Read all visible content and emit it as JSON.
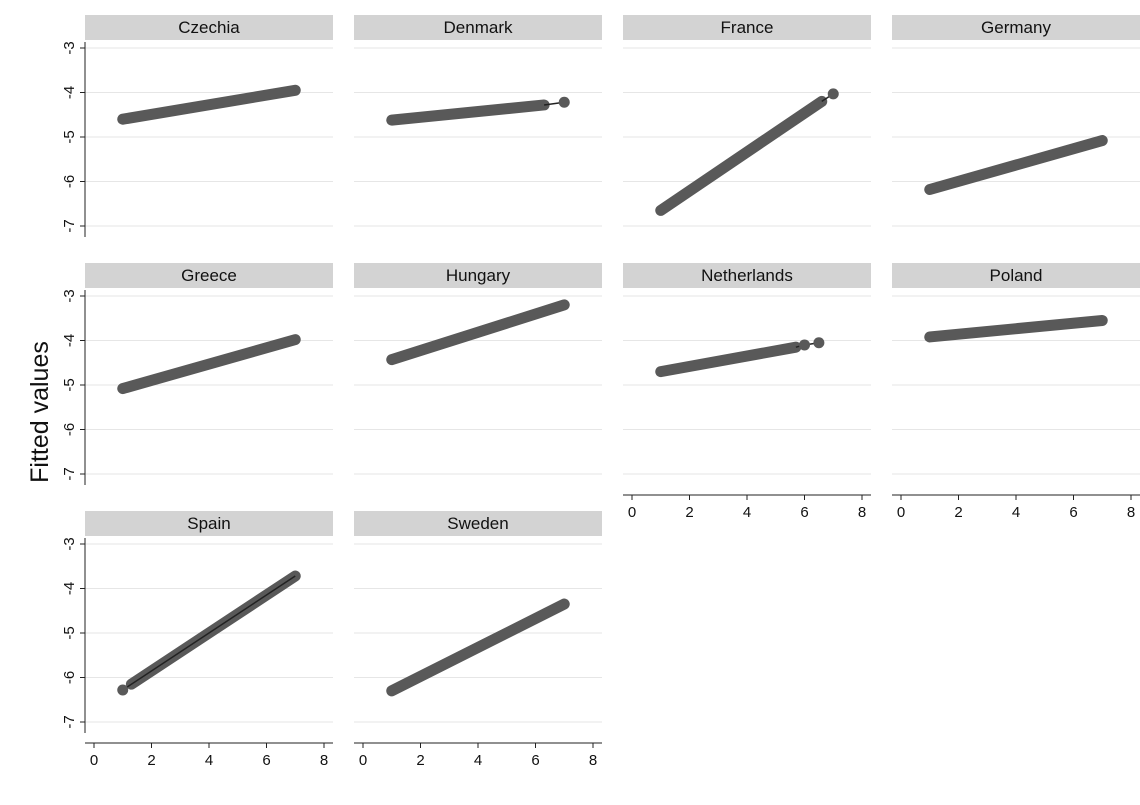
{
  "chart_data": {
    "type": "scatter",
    "ylabel": "Fitted values",
    "xlabel": "",
    "xlim": [
      0,
      8
    ],
    "ylim": [
      -7,
      -3
    ],
    "xticks": [
      0,
      2,
      4,
      6,
      8
    ],
    "yticks": [
      -3,
      -4,
      -5,
      -6,
      -7
    ],
    "ytick_labels": [
      "-3",
      "-4",
      "-5",
      "-6",
      "-7"
    ],
    "xtick_labels": [
      "0",
      "2",
      "4",
      "6",
      "8"
    ],
    "grid": true,
    "marker_color": "#595959",
    "panel_header_color": "#d3d3d3",
    "layout": {
      "columns": 4,
      "rows": 3
    },
    "panels": [
      {
        "name": "Czechia",
        "x_start": 1,
        "x_end": 7,
        "y_start": -4.6,
        "y_end": -3.95,
        "outliers": []
      },
      {
        "name": "Denmark",
        "x_start": 1,
        "x_end": 6.3,
        "y_start": -4.62,
        "y_end": -4.28,
        "outliers": [
          {
            "x": 7,
            "y": -4.22
          }
        ]
      },
      {
        "name": "France",
        "x_start": 1,
        "x_end": 6.6,
        "y_start": -6.65,
        "y_end": -4.2,
        "outliers": [
          {
            "x": 7,
            "y": -4.03
          }
        ]
      },
      {
        "name": "Germany",
        "x_start": 1,
        "x_end": 7,
        "y_start": -6.18,
        "y_end": -5.08,
        "outliers": []
      },
      {
        "name": "Greece",
        "x_start": 1,
        "x_end": 7,
        "y_start": -5.08,
        "y_end": -3.98,
        "outliers": []
      },
      {
        "name": "Hungary",
        "x_start": 1,
        "x_end": 7,
        "y_start": -4.43,
        "y_end": -3.2,
        "outliers": []
      },
      {
        "name": "Netherlands",
        "x_start": 1,
        "x_end": 5.7,
        "y_start": -4.7,
        "y_end": -4.15,
        "outliers": [
          {
            "x": 6,
            "y": -4.1
          },
          {
            "x": 6.5,
            "y": -4.05
          }
        ]
      },
      {
        "name": "Poland",
        "x_start": 1,
        "x_end": 7,
        "y_start": -3.92,
        "y_end": -3.55,
        "outliers": []
      },
      {
        "name": "Spain",
        "x_start": 1.3,
        "x_end": 7,
        "y_start": -6.15,
        "y_end": -3.72,
        "outliers": [
          {
            "x": 1,
            "y": -6.28
          }
        ]
      },
      {
        "name": "Sweden",
        "x_start": 1,
        "x_end": 7,
        "y_start": -6.3,
        "y_end": -4.35,
        "outliers": []
      }
    ]
  }
}
